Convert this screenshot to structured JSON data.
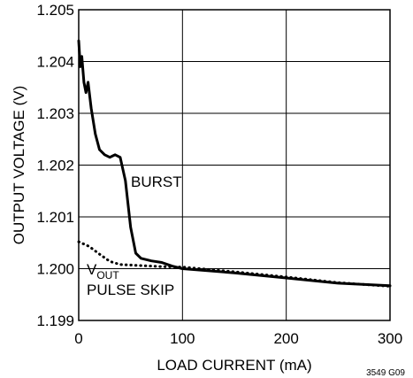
{
  "chart_data": {
    "type": "line",
    "title": "",
    "xlabel": "LOAD CURRENT (mA)",
    "ylabel": "OUTPUT VOLTAGE (V)",
    "xlim": [
      0,
      300
    ],
    "ylim": [
      1.199,
      1.205
    ],
    "x_ticks": [
      "0",
      "100",
      "200",
      "300"
    ],
    "y_ticks": [
      "1.199",
      "1.200",
      "1.201",
      "1.202",
      "1.203",
      "1.204",
      "1.205"
    ],
    "grid": true,
    "series": [
      {
        "name": "BURST",
        "style": "solid",
        "points": [
          [
            0,
            1.2044
          ],
          [
            1.5,
            1.2039
          ],
          [
            3,
            1.2041
          ],
          [
            5,
            1.2036
          ],
          [
            7,
            1.2034
          ],
          [
            9,
            1.2036
          ],
          [
            12,
            1.2031
          ],
          [
            16,
            1.2026
          ],
          [
            20,
            1.2023
          ],
          [
            25,
            1.2022
          ],
          [
            30,
            1.20215
          ],
          [
            35,
            1.2022
          ],
          [
            40,
            1.20215
          ],
          [
            45,
            1.2017
          ],
          [
            50,
            1.2008
          ],
          [
            55,
            1.2003
          ],
          [
            60,
            1.2002
          ],
          [
            70,
            1.20015
          ],
          [
            80,
            1.20012
          ],
          [
            90,
            1.20005
          ],
          [
            100,
            1.2
          ],
          [
            150,
            1.19992
          ],
          [
            200,
            1.19982
          ],
          [
            250,
            1.19972
          ],
          [
            300,
            1.19967
          ]
        ]
      },
      {
        "name": "PULSE SKIP",
        "style": "dotted",
        "points": [
          [
            0,
            1.20052
          ],
          [
            10,
            1.20043
          ],
          [
            20,
            1.20028
          ],
          [
            30,
            1.20014
          ],
          [
            40,
            1.20008
          ],
          [
            50,
            1.20007
          ],
          [
            60,
            1.20006
          ],
          [
            80,
            1.20004
          ],
          [
            100,
            1.20003
          ],
          [
            150,
            1.19994
          ],
          [
            200,
            1.19984
          ],
          [
            250,
            1.19973
          ],
          [
            300,
            1.19966
          ]
        ]
      }
    ],
    "annotations": {
      "burst": "BURST",
      "vout_main": "V",
      "vout_sub": "OUT",
      "pulse_skip": "PULSE SKIP"
    },
    "figure_code": "3549 G09"
  }
}
